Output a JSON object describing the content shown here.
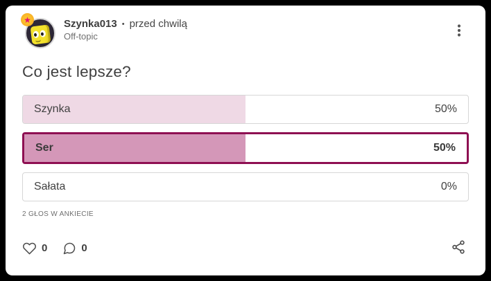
{
  "header": {
    "username": "Szynka013",
    "separator": "•",
    "timestamp": "przed chwilą",
    "category": "Off-topic",
    "badge_star": "★"
  },
  "poll": {
    "question": "Co jest lepsze?",
    "options": [
      {
        "label": "Szynka",
        "percent": "50%",
        "value": 50,
        "selected": false
      },
      {
        "label": "Ser",
        "percent": "50%",
        "value": 50,
        "selected": true
      },
      {
        "label": "Sałata",
        "percent": "0%",
        "value": 0,
        "selected": false
      }
    ],
    "votes_caption": "2 GŁOS W ANKIECIE"
  },
  "footer": {
    "likes": "0",
    "comments": "0"
  },
  "colors": {
    "fill_unselected": "#efd9e5",
    "fill_selected": "#d497b8",
    "selected_border": "#8e0f52",
    "unselected_border": "#d6d6d6"
  }
}
